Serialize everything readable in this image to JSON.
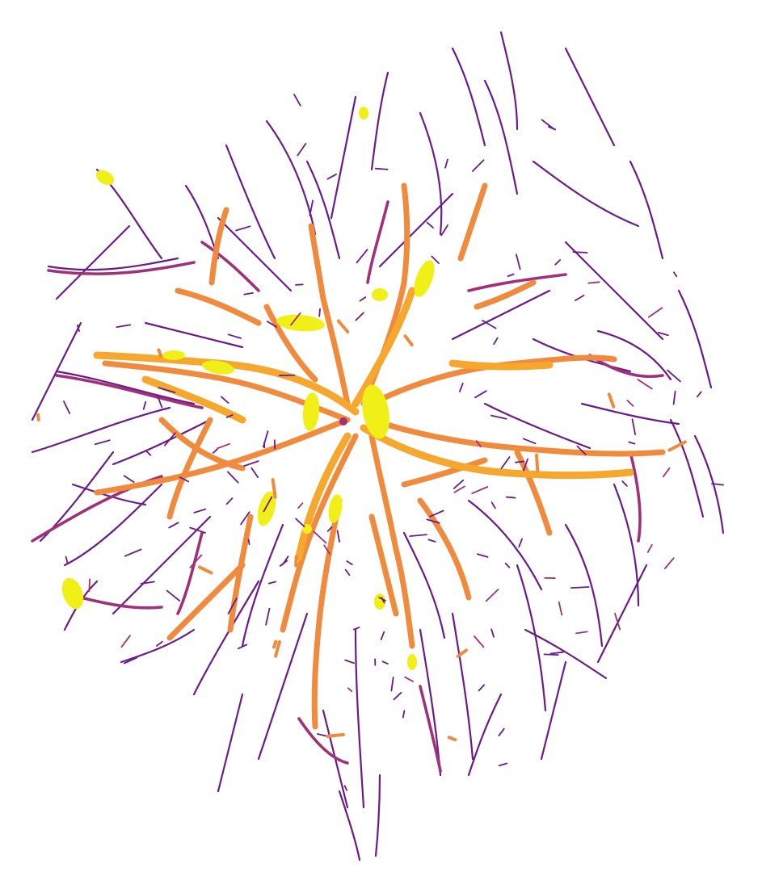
{
  "image": {
    "subject": "vessel-segmentation-map",
    "background_color": "#ffffff",
    "palette": {
      "thin_vessel": "#6a1b8a",
      "small_vessel": "#a0307a",
      "medium_vessel": "#d4524e",
      "large_vessel": "#f08a3c",
      "major_vessel": "#f6a72e",
      "bright_patch": "#f0f018",
      "bright_patch_edge": "#f8e21e"
    }
  }
}
